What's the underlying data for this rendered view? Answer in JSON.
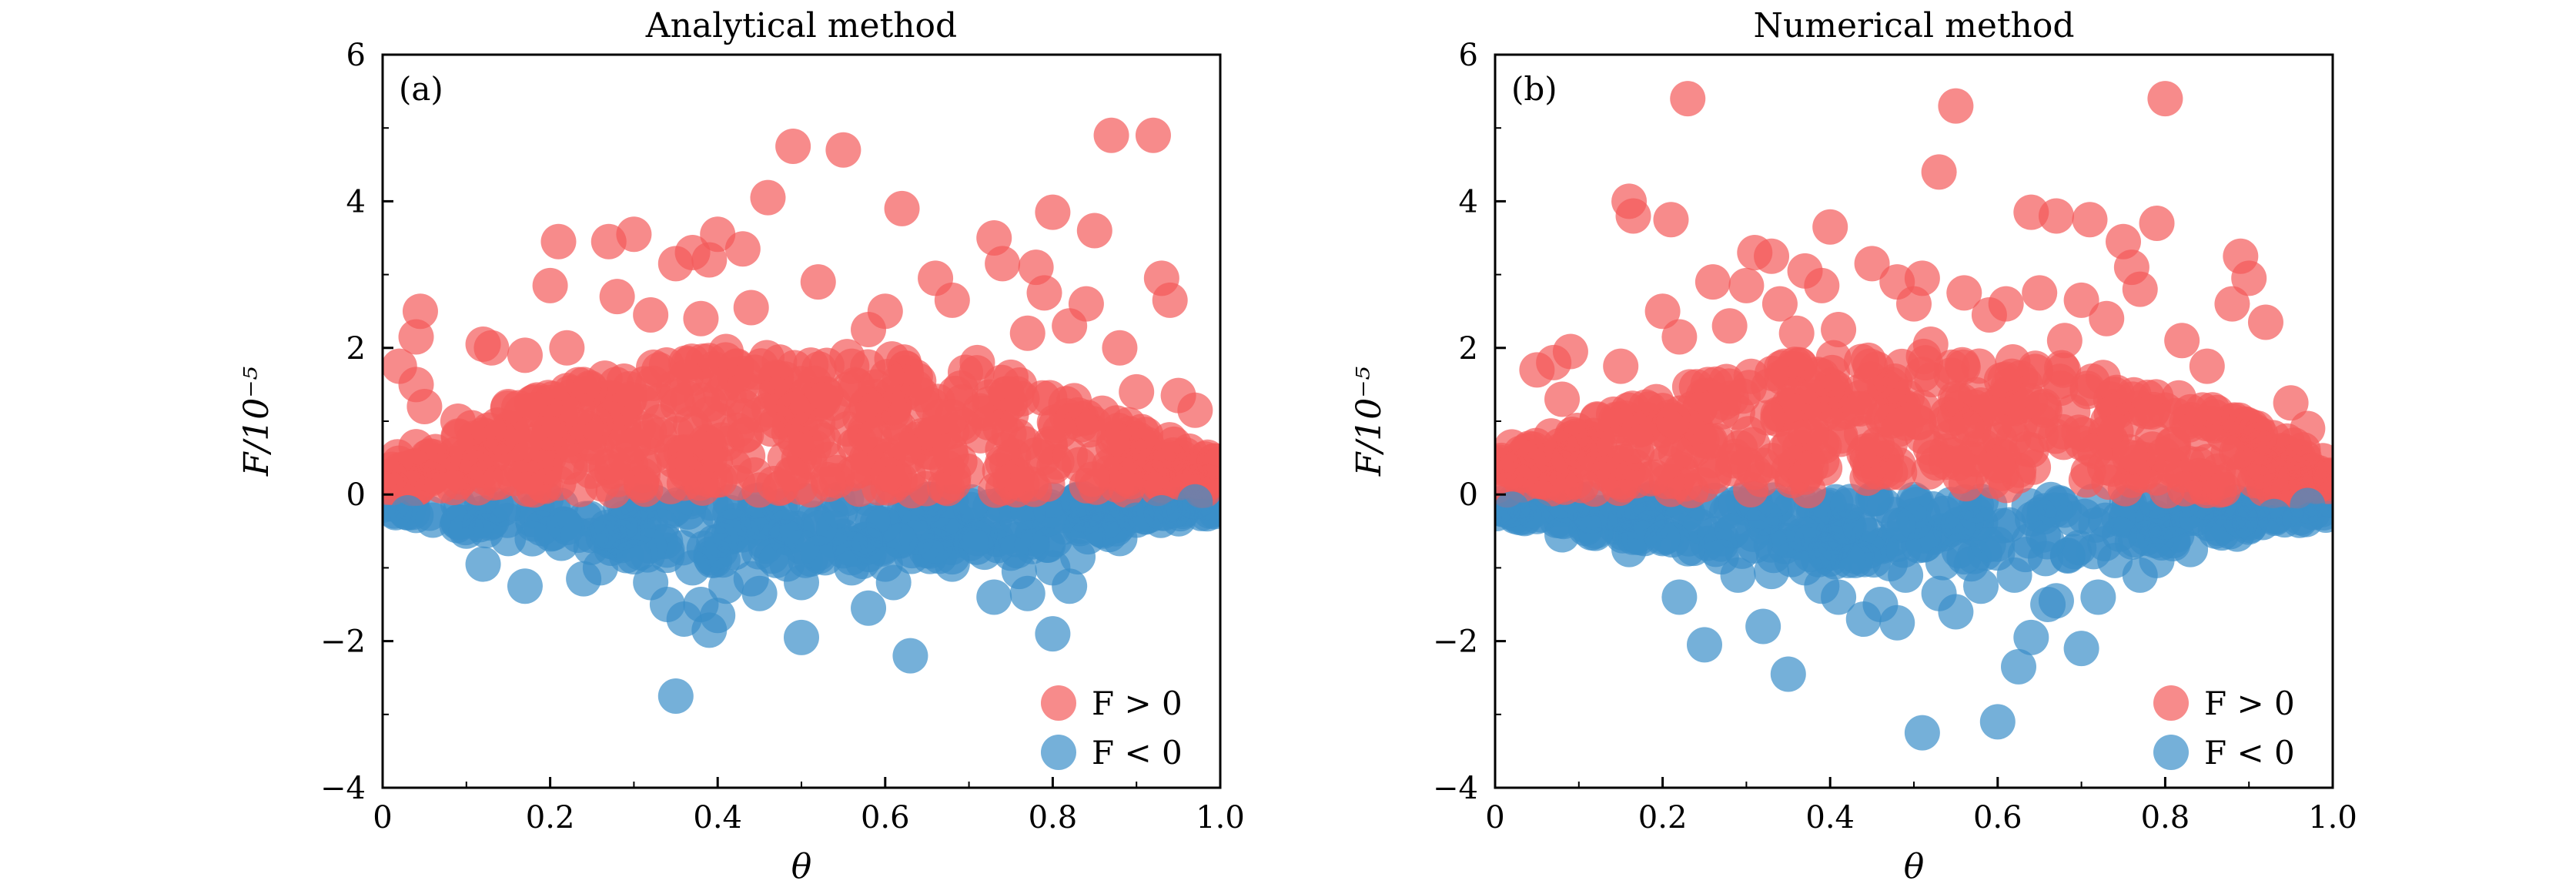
{
  "chart_data": [
    {
      "type": "scatter",
      "title": "Analytical method",
      "panel_tag": "(a)",
      "xlabel": "θ",
      "ylabel": "F/10⁻⁵",
      "xlim": [
        0,
        1.0
      ],
      "ylim": [
        -4,
        6
      ],
      "xticks": [
        "0",
        "0.2",
        "0.4",
        "0.6",
        "0.8",
        "1.0"
      ],
      "yticks": [
        "−4",
        "−2",
        "0",
        "2",
        "4",
        "6"
      ],
      "grid": false,
      "legend_position": "bottom-right",
      "series": [
        {
          "name": "F > 0",
          "color": "#f45a5a",
          "points": [
            [
              0.02,
              1.75
            ],
            [
              0.04,
              2.15
            ],
            [
              0.045,
              2.5
            ],
            [
              0.04,
              1.5
            ],
            [
              0.05,
              1.2
            ],
            [
              0.12,
              2.05
            ],
            [
              0.13,
              2.0
            ],
            [
              0.17,
              1.9
            ],
            [
              0.2,
              2.85
            ],
            [
              0.21,
              3.45
            ],
            [
              0.22,
              2.0
            ],
            [
              0.27,
              3.45
            ],
            [
              0.28,
              2.7
            ],
            [
              0.3,
              3.55
            ],
            [
              0.32,
              2.45
            ],
            [
              0.35,
              3.15
            ],
            [
              0.37,
              3.3
            ],
            [
              0.38,
              2.4
            ],
            [
              0.39,
              3.2
            ],
            [
              0.4,
              3.55
            ],
            [
              0.41,
              1.95
            ],
            [
              0.43,
              3.35
            ],
            [
              0.44,
              2.55
            ],
            [
              0.46,
              4.05
            ],
            [
              0.49,
              4.75
            ],
            [
              0.52,
              2.9
            ],
            [
              0.55,
              4.7
            ],
            [
              0.58,
              2.25
            ],
            [
              0.6,
              2.5
            ],
            [
              0.62,
              3.9
            ],
            [
              0.66,
              2.95
            ],
            [
              0.68,
              2.65
            ],
            [
              0.71,
              1.8
            ],
            [
              0.73,
              3.5
            ],
            [
              0.74,
              3.15
            ],
            [
              0.77,
              2.2
            ],
            [
              0.78,
              3.1
            ],
            [
              0.79,
              2.75
            ],
            [
              0.8,
              3.85
            ],
            [
              0.82,
              2.3
            ],
            [
              0.84,
              2.6
            ],
            [
              0.85,
              3.6
            ],
            [
              0.87,
              4.9
            ],
            [
              0.88,
              2.0
            ],
            [
              0.92,
              4.9
            ],
            [
              0.93,
              2.95
            ],
            [
              0.94,
              2.65
            ],
            [
              0.95,
              1.35
            ],
            [
              0.97,
              1.15
            ],
            [
              0.09,
              1.0
            ],
            [
              0.15,
              1.2
            ],
            [
              0.24,
              1.5
            ],
            [
              0.33,
              1.7
            ],
            [
              0.47,
              1.6
            ],
            [
              0.56,
              1.75
            ],
            [
              0.64,
              1.55
            ],
            [
              0.69,
              1.45
            ],
            [
              0.75,
              1.6
            ],
            [
              0.9,
              1.4
            ]
          ]
        },
        {
          "name": "F < 0",
          "color": "#3a8fc9",
          "points": [
            [
              0.03,
              -0.25
            ],
            [
              0.06,
              -0.35
            ],
            [
              0.1,
              -0.5
            ],
            [
              0.12,
              -0.95
            ],
            [
              0.15,
              -0.6
            ],
            [
              0.17,
              -1.25
            ],
            [
              0.22,
              -0.45
            ],
            [
              0.24,
              -1.15
            ],
            [
              0.26,
              -1.0
            ],
            [
              0.27,
              -0.5
            ],
            [
              0.3,
              -0.85
            ],
            [
              0.32,
              -1.2
            ],
            [
              0.34,
              -1.5
            ],
            [
              0.35,
              -2.75
            ],
            [
              0.36,
              -1.7
            ],
            [
              0.37,
              -1.0
            ],
            [
              0.38,
              -1.5
            ],
            [
              0.39,
              -1.85
            ],
            [
              0.4,
              -1.65
            ],
            [
              0.41,
              -1.25
            ],
            [
              0.44,
              -1.15
            ],
            [
              0.45,
              -1.35
            ],
            [
              0.47,
              -0.9
            ],
            [
              0.5,
              -1.2
            ],
            [
              0.5,
              -1.95
            ],
            [
              0.52,
              -0.8
            ],
            [
              0.56,
              -1.0
            ],
            [
              0.58,
              -1.55
            ],
            [
              0.6,
              -0.95
            ],
            [
              0.61,
              -1.2
            ],
            [
              0.63,
              -2.2
            ],
            [
              0.66,
              -0.7
            ],
            [
              0.68,
              -0.95
            ],
            [
              0.71,
              -0.6
            ],
            [
              0.73,
              -1.4
            ],
            [
              0.75,
              -0.8
            ],
            [
              0.76,
              -1.05
            ],
            [
              0.77,
              -1.35
            ],
            [
              0.8,
              -1.9
            ],
            [
              0.8,
              -1.0
            ],
            [
              0.82,
              -1.25
            ],
            [
              0.83,
              -0.85
            ],
            [
              0.86,
              -0.5
            ],
            [
              0.88,
              -0.6
            ],
            [
              0.9,
              -0.35
            ],
            [
              0.93,
              -0.25
            ],
            [
              0.97,
              -0.1
            ]
          ]
        }
      ]
    },
    {
      "type": "scatter",
      "title": "Numerical method",
      "panel_tag": "(b)",
      "xlabel": "θ",
      "ylabel": "F/10⁻⁵",
      "xlim": [
        0,
        1.0
      ],
      "ylim": [
        -4,
        6
      ],
      "xticks": [
        "0",
        "0.2",
        "0.4",
        "0.6",
        "0.8",
        "1.0"
      ],
      "yticks": [
        "−4",
        "−2",
        "0",
        "2",
        "4",
        "6"
      ],
      "grid": false,
      "legend_position": "bottom-right",
      "series": [
        {
          "name": "F > 0",
          "color": "#f45a5a",
          "points": [
            [
              0.02,
              0.65
            ],
            [
              0.05,
              1.7
            ],
            [
              0.07,
              1.8
            ],
            [
              0.08,
              1.3
            ],
            [
              0.09,
              1.95
            ],
            [
              0.15,
              1.75
            ],
            [
              0.16,
              4.0
            ],
            [
              0.165,
              3.8
            ],
            [
              0.2,
              2.5
            ],
            [
              0.21,
              3.75
            ],
            [
              0.22,
              2.15
            ],
            [
              0.23,
              5.4
            ],
            [
              0.26,
              2.9
            ],
            [
              0.28,
              2.3
            ],
            [
              0.3,
              2.85
            ],
            [
              0.31,
              3.3
            ],
            [
              0.33,
              3.25
            ],
            [
              0.34,
              2.6
            ],
            [
              0.36,
              2.2
            ],
            [
              0.37,
              3.05
            ],
            [
              0.39,
              2.85
            ],
            [
              0.4,
              3.65
            ],
            [
              0.41,
              2.25
            ],
            [
              0.45,
              3.15
            ],
            [
              0.48,
              2.9
            ],
            [
              0.5,
              2.6
            ],
            [
              0.51,
              2.95
            ],
            [
              0.52,
              2.05
            ],
            [
              0.53,
              4.4
            ],
            [
              0.55,
              5.3
            ],
            [
              0.56,
              2.75
            ],
            [
              0.59,
              2.45
            ],
            [
              0.61,
              2.6
            ],
            [
              0.64,
              3.85
            ],
            [
              0.65,
              2.75
            ],
            [
              0.67,
              3.8
            ],
            [
              0.68,
              2.1
            ],
            [
              0.7,
              2.65
            ],
            [
              0.71,
              3.75
            ],
            [
              0.73,
              2.4
            ],
            [
              0.75,
              3.45
            ],
            [
              0.76,
              3.1
            ],
            [
              0.77,
              2.8
            ],
            [
              0.79,
              3.7
            ],
            [
              0.8,
              5.4
            ],
            [
              0.82,
              2.1
            ],
            [
              0.85,
              1.75
            ],
            [
              0.88,
              2.6
            ],
            [
              0.89,
              3.25
            ],
            [
              0.9,
              2.95
            ],
            [
              0.92,
              2.35
            ],
            [
              0.95,
              1.25
            ],
            [
              0.97,
              0.9
            ]
          ]
        },
        {
          "name": "F < 0",
          "color": "#3a8fc9",
          "points": [
            [
              0.02,
              -0.2
            ],
            [
              0.05,
              -0.3
            ],
            [
              0.08,
              -0.55
            ],
            [
              0.12,
              -0.5
            ],
            [
              0.16,
              -0.75
            ],
            [
              0.2,
              -0.6
            ],
            [
              0.22,
              -1.4
            ],
            [
              0.25,
              -2.05
            ],
            [
              0.27,
              -0.85
            ],
            [
              0.29,
              -1.1
            ],
            [
              0.31,
              -0.7
            ],
            [
              0.32,
              -1.8
            ],
            [
              0.33,
              -1.05
            ],
            [
              0.35,
              -2.45
            ],
            [
              0.37,
              -1.0
            ],
            [
              0.39,
              -1.25
            ],
            [
              0.41,
              -1.4
            ],
            [
              0.43,
              -0.9
            ],
            [
              0.44,
              -1.7
            ],
            [
              0.46,
              -1.5
            ],
            [
              0.48,
              -1.75
            ],
            [
              0.49,
              -1.1
            ],
            [
              0.51,
              -3.25
            ],
            [
              0.53,
              -1.35
            ],
            [
              0.55,
              -1.6
            ],
            [
              0.56,
              -0.85
            ],
            [
              0.58,
              -1.25
            ],
            [
              0.6,
              -3.1
            ],
            [
              0.62,
              -1.1
            ],
            [
              0.625,
              -2.35
            ],
            [
              0.64,
              -1.95
            ],
            [
              0.66,
              -1.5
            ],
            [
              0.67,
              -1.45
            ],
            [
              0.7,
              -2.1
            ],
            [
              0.72,
              -1.4
            ],
            [
              0.74,
              -0.9
            ],
            [
              0.77,
              -1.1
            ],
            [
              0.79,
              -0.9
            ],
            [
              0.83,
              -0.75
            ],
            [
              0.86,
              -0.5
            ],
            [
              0.89,
              -0.35
            ],
            [
              0.93,
              -0.3
            ],
            [
              0.97,
              -0.15
            ]
          ]
        }
      ]
    }
  ]
}
